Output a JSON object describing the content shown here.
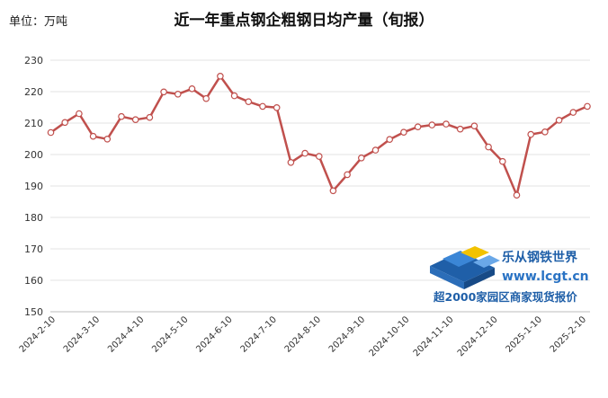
{
  "chart_data": {
    "type": "line",
    "unit_label": "单位：万吨",
    "title": "近一年重点钢企粗钢日均产量（旬报）",
    "ylim": [
      150,
      230
    ],
    "yticks": [
      150,
      160,
      170,
      180,
      190,
      200,
      210,
      220,
      230
    ],
    "x_tick_labels": [
      "2024-2-10",
      "2024-3-10",
      "2024-4-10",
      "2024-5-10",
      "2024-6-10",
      "2024-7-10",
      "2024-8-10",
      "2024-9-10",
      "2024-10-10",
      "2024-11-10",
      "2024-12-10",
      "2025-1-10",
      "2025-2-10"
    ],
    "grid": true,
    "legend": "none",
    "line_color": "#c0504d",
    "values": [
      207.0,
      210.2,
      213.0,
      205.8,
      204.9,
      212.1,
      211.1,
      211.8,
      219.9,
      219.2,
      220.9,
      217.8,
      224.9,
      218.7,
      216.8,
      215.3,
      214.9,
      197.5,
      200.4,
      199.4,
      188.5,
      193.6,
      198.9,
      201.4,
      204.8,
      207.1,
      208.8,
      209.4,
      209.7,
      208.1,
      209.1,
      202.4,
      197.8,
      187.1,
      206.4,
      207.2,
      210.9,
      213.4,
      215.3
    ]
  },
  "watermark": {
    "name": "乐从钢铁世界",
    "url": "www.lcgt.cn",
    "tagline": "超2000家园区商家现货报价"
  }
}
